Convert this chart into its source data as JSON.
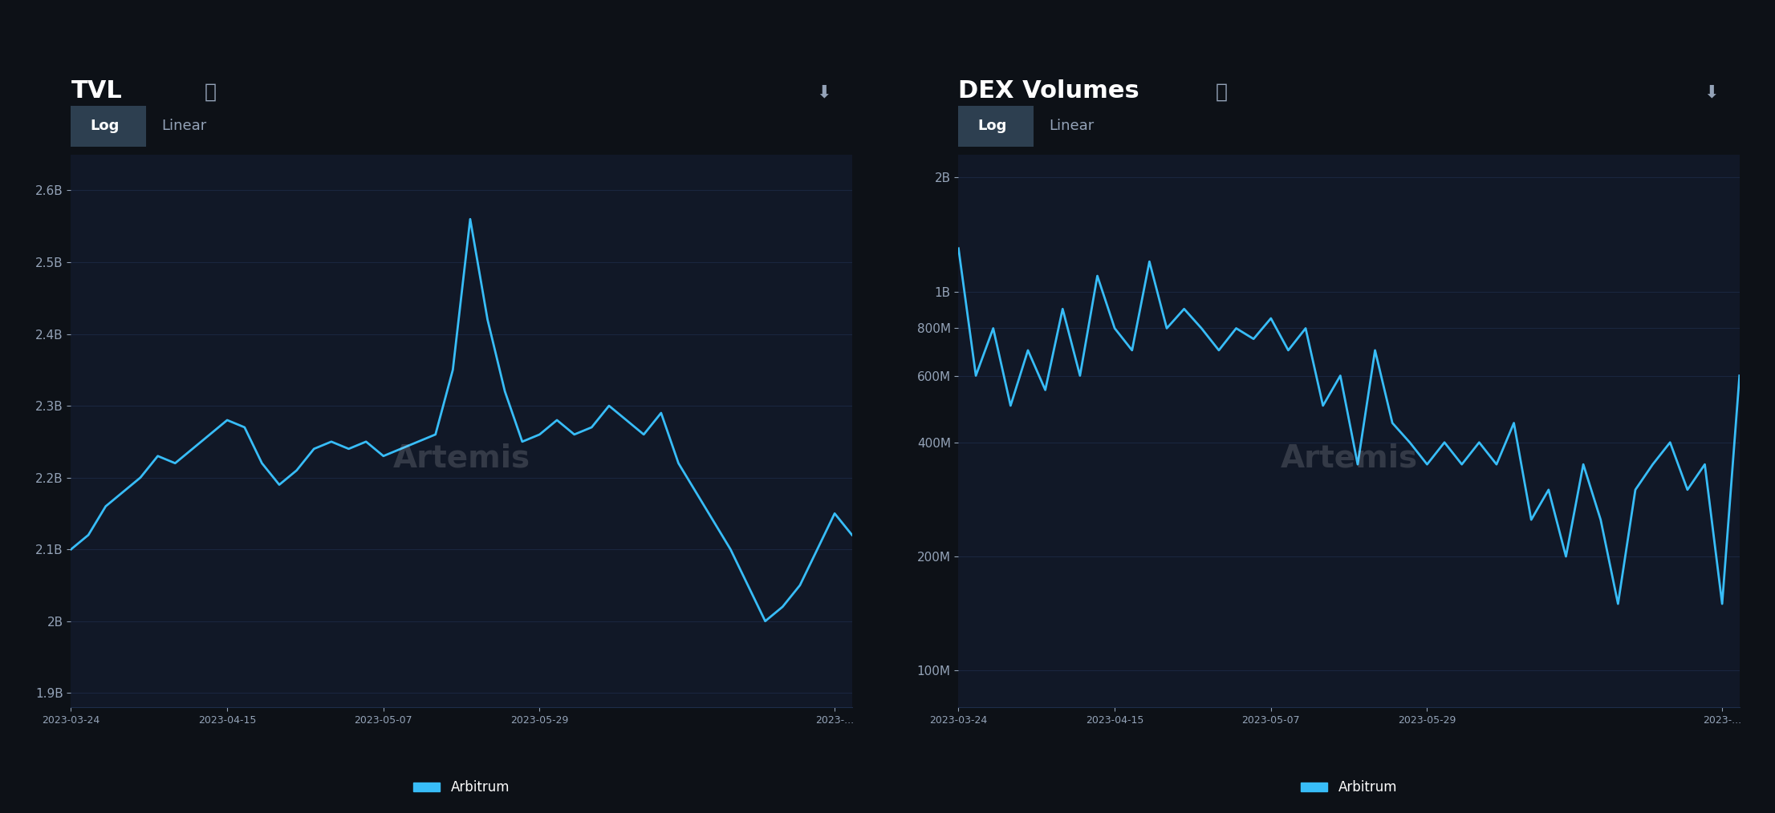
{
  "bg_color": "#0d1117",
  "panel_bg": "#111827",
  "grid_color": "#1e2d4a",
  "line_color": "#38bdf8",
  "text_color": "#ffffff",
  "axis_label_color": "#94a3b8",
  "title_color": "#ffffff",
  "tvl_title": "TVL",
  "dex_title": "DEX Volumes",
  "tvl_yticks": [
    1900000000.0,
    2000000000.0,
    2100000000.0,
    2200000000.0,
    2300000000.0,
    2400000000.0,
    2500000000.0,
    2600000000.0
  ],
  "tvl_ytick_labels": [
    "1.9B",
    "2B",
    "2.1B",
    "2.2B",
    "2.3B",
    "2.4B",
    "2.5B",
    "2.6B"
  ],
  "tvl_ylim": [
    1880000000.0,
    2650000000.0
  ],
  "dex_yticks": [
    100000000.0,
    200000000.0,
    400000000.0,
    600000000.0,
    800000000.0,
    1000000000.0,
    2000000000.0
  ],
  "dex_ytick_labels": [
    "100M",
    "200M",
    "400M",
    "600M",
    "800M",
    "1B",
    "2B"
  ],
  "dex_ylim": [
    80000000.0,
    2300000000.0
  ],
  "xtick_labels": [
    "2023-03-24",
    "2023-04-15",
    "2023-05-07",
    "2023-05-29",
    "2023-..."
  ],
  "tvl_x": [
    0,
    2,
    4,
    6,
    8,
    10,
    12,
    14,
    16,
    18,
    20,
    22,
    24,
    26,
    28,
    30,
    32,
    34,
    36,
    38,
    40,
    42,
    44,
    46,
    48,
    50,
    52,
    54,
    56,
    58,
    60,
    62,
    64,
    66,
    68,
    70,
    72,
    74,
    76,
    78,
    80,
    82,
    84,
    86,
    88,
    90
  ],
  "tvl_y": [
    2100000000.0,
    2120000000.0,
    2160000000.0,
    2180000000.0,
    2200000000.0,
    2230000000.0,
    2220000000.0,
    2240000000.0,
    2260000000.0,
    2280000000.0,
    2270000000.0,
    2220000000.0,
    2190000000.0,
    2210000000.0,
    2240000000.0,
    2250000000.0,
    2240000000.0,
    2250000000.0,
    2230000000.0,
    2240000000.0,
    2250000000.0,
    2260000000.0,
    2350000000.0,
    2560000000.0,
    2420000000.0,
    2320000000.0,
    2250000000.0,
    2260000000.0,
    2280000000.0,
    2260000000.0,
    2270000000.0,
    2300000000.0,
    2280000000.0,
    2260000000.0,
    2290000000.0,
    2220000000.0,
    2180000000.0,
    2140000000.0,
    2100000000.0,
    2050000000.0,
    2000000000.0,
    2020000000.0,
    2050000000.0,
    2100000000.0,
    2150000000.0,
    2120000000.0
  ],
  "dex_x": [
    0,
    2,
    4,
    6,
    8,
    10,
    12,
    14,
    16,
    18,
    20,
    22,
    24,
    26,
    28,
    30,
    32,
    34,
    36,
    38,
    40,
    42,
    44,
    46,
    48,
    50,
    52,
    54,
    56,
    58,
    60,
    62,
    64,
    66,
    68,
    70,
    72,
    74,
    76,
    78,
    80,
    82,
    84,
    86,
    88,
    90
  ],
  "dex_y": [
    1300000000.0,
    600000000.0,
    800000000.0,
    500000000.0,
    700000000.0,
    550000000.0,
    900000000.0,
    600000000.0,
    1100000000.0,
    800000000.0,
    700000000.0,
    1200000000.0,
    800000000.0,
    900000000.0,
    800000000.0,
    700000000.0,
    800000000.0,
    750000000.0,
    850000000.0,
    700000000.0,
    800000000.0,
    500000000.0,
    600000000.0,
    350000000.0,
    700000000.0,
    450000000.0,
    400000000.0,
    350000000.0,
    400000000.0,
    350000000.0,
    400000000.0,
    350000000.0,
    450000000.0,
    250000000.0,
    300000000.0,
    200000000.0,
    350000000.0,
    250000000.0,
    150000000.0,
    300000000.0,
    350000000.0,
    400000000.0,
    300000000.0,
    350000000.0,
    150000000.0,
    600000000.0
  ],
  "legend_label": "Arbitrum",
  "legend_color": "#38bdf8"
}
